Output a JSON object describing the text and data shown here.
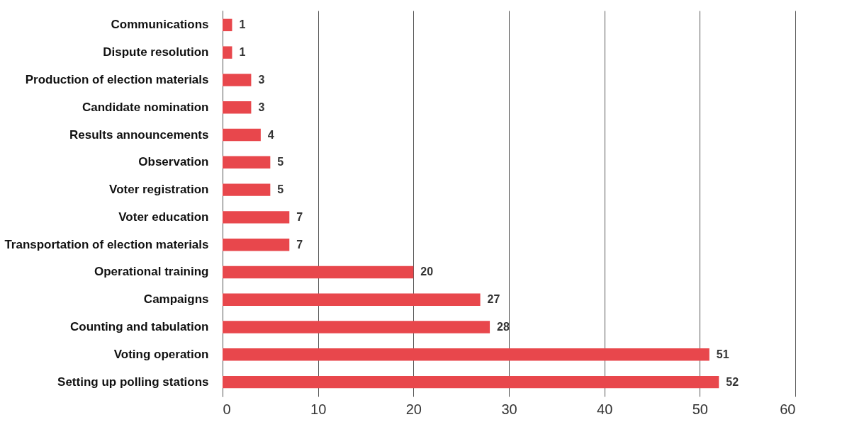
{
  "chart_data": {
    "type": "bar",
    "orientation": "horizontal",
    "categories": [
      "Communications",
      "Dispute resolution",
      "Production of election materials",
      "Candidate nomination",
      "Results announcements",
      "Observation",
      "Voter registration",
      "Voter education",
      "Transportation of election materials",
      "Operational training",
      "Campaigns",
      "Counting and tabulation",
      "Voting operation",
      "Setting up polling stations"
    ],
    "values": [
      1,
      1,
      3,
      3,
      4,
      5,
      5,
      7,
      7,
      20,
      27,
      28,
      51,
      52
    ],
    "color": "#e8474c",
    "xlim": [
      0,
      60
    ],
    "xticks": [
      0,
      10,
      20,
      30,
      40,
      50,
      60
    ],
    "grid": "x",
    "data_labels": true
  }
}
